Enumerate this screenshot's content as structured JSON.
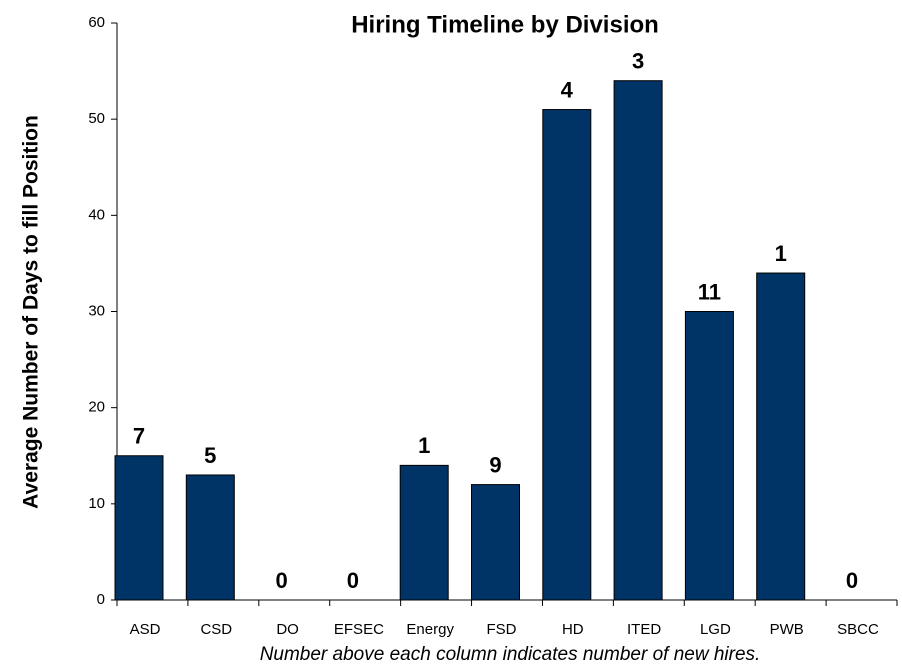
{
  "chart_data": {
    "type": "bar",
    "title": "Hiring Timeline by Division",
    "y_axis_label": "Average Number of Days to fill Position",
    "note": "Number above each column indicates number of new hires.",
    "categories": [
      "ASD",
      "CSD",
      "DO",
      "EFSEC",
      "Energy",
      "FSD",
      "HD",
      "ITED",
      "LGD",
      "PWB",
      "SBCC"
    ],
    "values": [
      15,
      13,
      0,
      0,
      14,
      12,
      51,
      54,
      30,
      34,
      0
    ],
    "bar_labels": [
      7,
      5,
      0,
      0,
      1,
      9,
      4,
      3,
      11,
      1,
      0
    ],
    "color": "#003366",
    "ylim": [
      0,
      60
    ],
    "yticks": [
      0,
      10,
      20,
      30,
      40,
      50,
      60
    ],
    "grid": false
  }
}
